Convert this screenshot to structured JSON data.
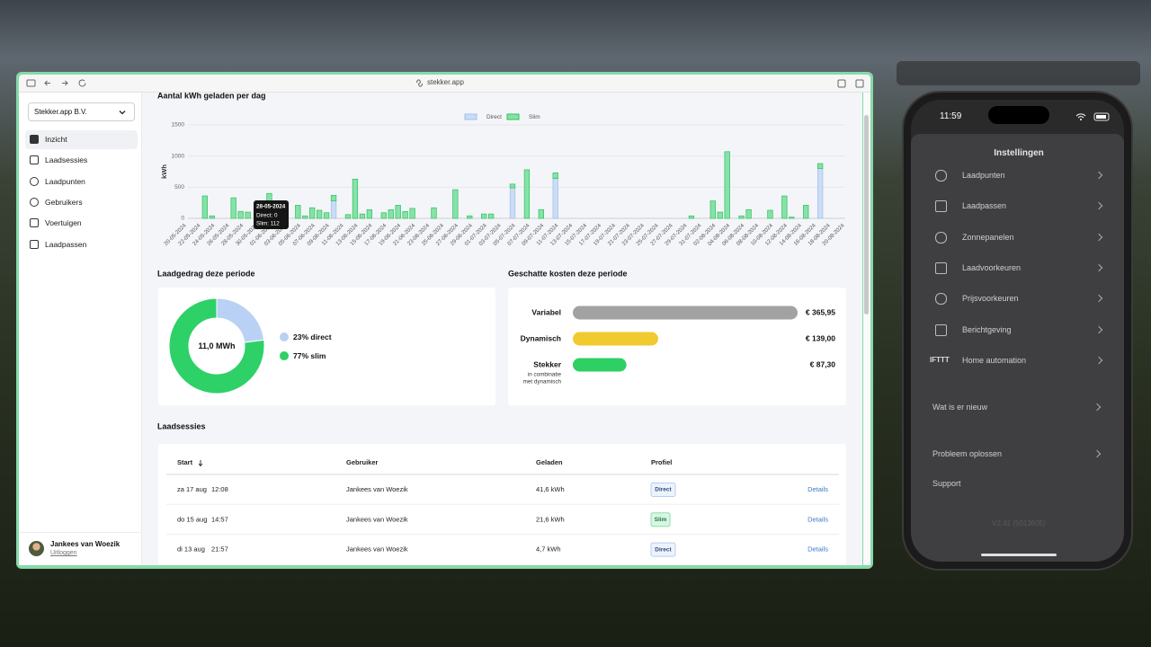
{
  "browser": {
    "url": "stekker.app"
  },
  "sidebar": {
    "organization": "Stekker.app B.V.",
    "nav": [
      "Inzicht",
      "Laadsessies",
      "Laadpunten",
      "Gebruikers",
      "Voertuigen",
      "Laadpassen"
    ],
    "user": {
      "name": "Jankees van Woezik",
      "logout": "Uitloggen"
    }
  },
  "chart_data": [
    {
      "type": "bar",
      "stacked": true,
      "title": "Aantal kWh geladen per dag",
      "y_label": "kWh",
      "categories": [
        "20-05-2024",
        null,
        "22-05-2024",
        null,
        "24-05-2024",
        null,
        "26-05-2024",
        null,
        "28-05-2024",
        null,
        "30-05-2024",
        null,
        "01-06-2024",
        null,
        "03-06-2024",
        null,
        "05-06-2024",
        null,
        "07-06-2024",
        null,
        "09-06-2024",
        null,
        "11-06-2024",
        null,
        "13-06-2024",
        null,
        "15-06-2024",
        null,
        "17-06-2024",
        null,
        "19-06-2024",
        null,
        "21-06-2024",
        null,
        "23-06-2024",
        null,
        "25-06-2024",
        null,
        "27-06-2024",
        null,
        "29-06-2024",
        null,
        "01-07-2024",
        null,
        "03-07-2024",
        null,
        "05-07-2024",
        null,
        "07-07-2024",
        null,
        "09-07-2024",
        null,
        "11-07-2024",
        null,
        "13-07-2024",
        null,
        "15-07-2024",
        null,
        "17-07-2024",
        null,
        "19-07-2024",
        null,
        "21-07-2024",
        null,
        "23-07-2024",
        null,
        "25-07-2024",
        null,
        "27-07-2024",
        null,
        "29-07-2024",
        null,
        "31-07-2024",
        null,
        "02-08-2024",
        null,
        "04-08-2024",
        null,
        "06-08-2024",
        null,
        "08-08-2024",
        null,
        "10-08-2024",
        null,
        "12-08-2024",
        null,
        "14-08-2024",
        null,
        "16-08-2024",
        null,
        "18-08-2024",
        null,
        "20-08-2024"
      ],
      "series": [
        {
          "name": "Direct",
          "color": "#cadcf6",
          "edge_color": "#9fbfea",
          "values": [
            0,
            0,
            0,
            0,
            0,
            0,
            0,
            0,
            0,
            0,
            0,
            0,
            0,
            0,
            0,
            0,
            0,
            0,
            0,
            0,
            0,
            280,
            0,
            0,
            0,
            0,
            0,
            0,
            0,
            0,
            0,
            0,
            0,
            0,
            0,
            0,
            0,
            0,
            0,
            0,
            0,
            0,
            0,
            0,
            0,
            0,
            490,
            0,
            0,
            0,
            0,
            0,
            640,
            0,
            0,
            0,
            0,
            0,
            0,
            0,
            0,
            0,
            0,
            0,
            0,
            0,
            0,
            0,
            0,
            0,
            0,
            0,
            0,
            0,
            0,
            0,
            0,
            0,
            0,
            0,
            0,
            0,
            0,
            0,
            0,
            0,
            0,
            0,
            0,
            800,
            0,
            0,
            0
          ]
        },
        {
          "name": "Slim",
          "color": "#86e2a8",
          "edge_color": "#2cc25f",
          "values": [
            0,
            0,
            0,
            360,
            40,
            0,
            0,
            330,
            112,
            100,
            0,
            0,
            400,
            90,
            220,
            0,
            210,
            40,
            170,
            130,
            90,
            90,
            0,
            60,
            630,
            70,
            140,
            0,
            90,
            140,
            210,
            110,
            160,
            0,
            0,
            170,
            0,
            0,
            460,
            0,
            40,
            0,
            70,
            70,
            0,
            0,
            60,
            0,
            780,
            0,
            140,
            0,
            90,
            0,
            0,
            0,
            0,
            0,
            0,
            0,
            0,
            0,
            0,
            0,
            0,
            0,
            0,
            0,
            0,
            0,
            0,
            40,
            0,
            0,
            280,
            100,
            1070,
            0,
            40,
            140,
            0,
            0,
            130,
            0,
            360,
            20,
            0,
            210,
            0,
            80,
            0,
            0,
            0
          ]
        }
      ],
      "ylim": [
        0,
        1500
      ],
      "yticks": [
        0,
        500,
        1000,
        1500
      ],
      "grid": true,
      "legend": "top",
      "tooltip": {
        "title": "28-05-2024",
        "lines": [
          "Direct: 0",
          "Slim: 112"
        ]
      }
    },
    {
      "type": "pie",
      "donut": true,
      "title": "Laadgedrag deze periode",
      "center_label": "11,0 MWh",
      "values": [
        23,
        77
      ],
      "value_labels": [
        "23% direct",
        "77% slim"
      ],
      "colors": [
        "#b9d1f4",
        "#2ed167"
      ]
    },
    {
      "type": "hbar",
      "title": "Geschatte kosten deze periode",
      "categories": [
        "Variabel",
        "Dynamisch",
        "Stekker"
      ],
      "notes": [
        null,
        null,
        [
          "in combinatie",
          "met dynamisch"
        ]
      ],
      "values": [
        365.95,
        139.0,
        87.3
      ],
      "value_labels": [
        "€ 365,95",
        "€ 139,00",
        "€ 87,30"
      ],
      "colors": [
        "#a2a2a2",
        "#f0ca2e",
        "#2ecf63"
      ]
    }
  ],
  "sessions": {
    "title": "Laadsessies",
    "columns": [
      "Start",
      "Gebruiker",
      "Geladen",
      "Profiel"
    ],
    "rows": [
      [
        "za 17 aug",
        "12:08",
        "Jankees van Woezik",
        "41,6 kWh",
        "Direct",
        "Details"
      ],
      [
        "do 15 aug",
        "14:57",
        "Jankees van Woezik",
        "21,6 kWh",
        "Slim",
        "Details"
      ],
      [
        "di 13 aug",
        "21:57",
        "Jankees van Woezik",
        "4,7 kWh",
        "Direct",
        "Details"
      ]
    ]
  },
  "phone": {
    "time": "11:59",
    "title": "Instellingen",
    "items": [
      "Laadpunten",
      "Laadpassen",
      "Zonnepanelen",
      "Laadvoorkeuren",
      "Prijsvoorkeuren",
      "Berichtgeving",
      "Home automation"
    ],
    "ifttt": "IFTTT",
    "links": [
      "Wat is er nieuw",
      "Probleem oplossen",
      "Support"
    ],
    "version": "V2.41 (5013605)"
  }
}
